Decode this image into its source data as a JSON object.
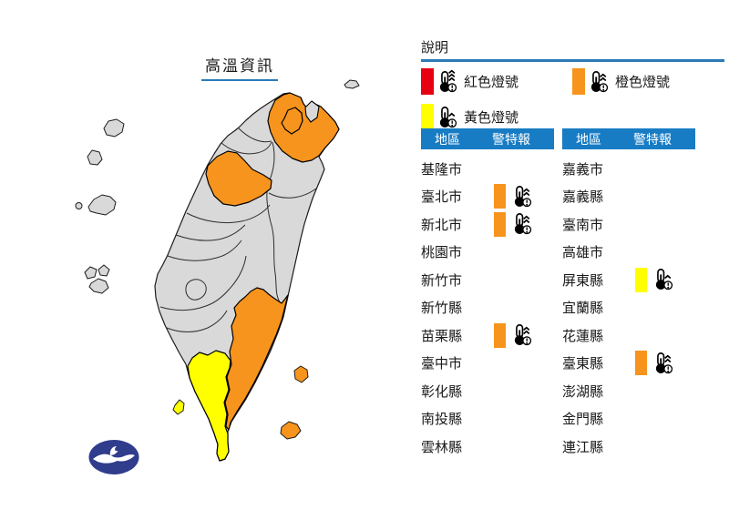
{
  "title": {
    "text": "高溫資訊"
  },
  "legend": {
    "heading": "說明",
    "items": [
      {
        "label": "紅色燈號",
        "color_key": "red",
        "level": 3
      },
      {
        "label": "橙色燈號",
        "color_key": "orange",
        "level": 2
      },
      {
        "label": "黃色燈號",
        "color_key": "yellow",
        "level": 1
      }
    ]
  },
  "warning_levels": {
    "red": 3,
    "orange": 2,
    "yellow": 1
  },
  "tables": [
    {
      "headers": {
        "region": "地區",
        "warning": "警特報"
      },
      "rows": [
        {
          "name": "基隆市",
          "warning": null
        },
        {
          "name": "臺北市",
          "warning": "orange"
        },
        {
          "name": "新北市",
          "warning": "orange"
        },
        {
          "name": "桃園市",
          "warning": null
        },
        {
          "name": "新竹市",
          "warning": null
        },
        {
          "name": "新竹縣",
          "warning": null
        },
        {
          "name": "苗栗縣",
          "warning": "orange"
        },
        {
          "name": "臺中市",
          "warning": null
        },
        {
          "name": "彰化縣",
          "warning": null
        },
        {
          "name": "南投縣",
          "warning": null
        },
        {
          "name": "雲林縣",
          "warning": null
        }
      ]
    },
    {
      "headers": {
        "region": "地區",
        "warning": "警特報"
      },
      "rows": [
        {
          "name": "嘉義市",
          "warning": null
        },
        {
          "name": "嘉義縣",
          "warning": null
        },
        {
          "name": "臺南市",
          "warning": null
        },
        {
          "name": "高雄市",
          "warning": null
        },
        {
          "name": "屏東縣",
          "warning": "yellow"
        },
        {
          "name": "宜蘭縣",
          "warning": null
        },
        {
          "name": "花蓮縣",
          "warning": null
        },
        {
          "name": "臺東縣",
          "warning": "orange"
        },
        {
          "name": "澎湖縣",
          "warning": null
        },
        {
          "name": "金門縣",
          "warning": null
        },
        {
          "name": "連江縣",
          "warning": null
        }
      ]
    }
  ],
  "map": {
    "default_fill": "#d9d9d9",
    "highlights": {
      "new-taipei-city": "orange",
      "taipei-city": "orange",
      "miaoli-county": "orange",
      "taitung-county": "orange",
      "green-island": "orange",
      "orchid-island": "orange",
      "pingtung-county": "yellow",
      "liuqiu-island": "yellow"
    }
  },
  "colors": {
    "red": "#e60012",
    "orange": "#f7941d",
    "yellow": "#ffff00",
    "header_blue": "#187cc4",
    "line_blue": "#2b7ab8",
    "logo_navy": "#303c8c"
  }
}
